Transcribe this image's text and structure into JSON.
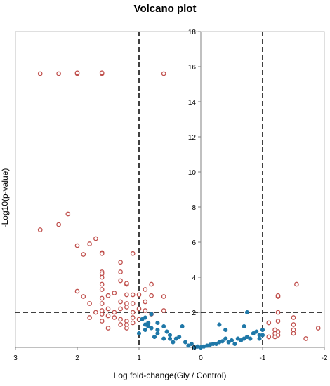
{
  "chart_data": {
    "type": "scatter",
    "title": "Volcano plot",
    "xlabel": "Log fold-change(Gly / Control)",
    "ylabel": "-Log10(p-value)",
    "x_reversed": true,
    "xlim": [
      3,
      -2
    ],
    "ylim": [
      0,
      18
    ],
    "x_ticks": [
      3,
      2,
      1,
      0,
      -1,
      -2
    ],
    "x_tick_labels": [
      "3",
      "2",
      "1",
      "0",
      "-1",
      "-2"
    ],
    "y_ticks": [
      0,
      2,
      4,
      6,
      8,
      10,
      12,
      14,
      16,
      18
    ],
    "y_tick_labels": [
      "0",
      "2",
      "4",
      "6",
      "8",
      "10",
      "12",
      "14",
      "16",
      "18"
    ],
    "threshold_lines": {
      "x": [
        1,
        -1
      ],
      "y": 2
    },
    "grid": false,
    "colors": {
      "significant": "#c0504d",
      "not_significant": "#1f78a8",
      "threshold": "#000000"
    },
    "series": [
      {
        "marker": "open-circle",
        "color": "#c0504d",
        "points": [
          [
            2.6,
            15.6
          ],
          [
            2.3,
            15.6
          ],
          [
            2.0,
            15.6
          ],
          [
            2.0,
            15.65
          ],
          [
            1.6,
            15.6
          ],
          [
            1.6,
            15.65
          ],
          [
            0.6,
            15.6
          ],
          [
            2.15,
            7.6
          ],
          [
            2.3,
            7.0
          ],
          [
            2.6,
            6.7
          ],
          [
            1.7,
            6.2
          ],
          [
            1.8,
            5.9
          ],
          [
            2.0,
            5.8
          ],
          [
            1.9,
            5.3
          ],
          [
            1.6,
            5.4
          ],
          [
            1.6,
            5.35
          ],
          [
            1.1,
            5.35
          ],
          [
            1.3,
            4.85
          ],
          [
            1.3,
            4.3
          ],
          [
            1.6,
            4.3
          ],
          [
            1.6,
            4.2
          ],
          [
            1.6,
            4.0
          ],
          [
            1.3,
            3.8
          ],
          [
            1.6,
            3.6
          ],
          [
            1.2,
            3.6
          ],
          [
            1.2,
            3.65
          ],
          [
            0.8,
            3.6
          ],
          [
            0.9,
            3.3
          ],
          [
            2.0,
            3.2
          ],
          [
            1.6,
            3.3
          ],
          [
            1.4,
            3.1
          ],
          [
            1.2,
            3.0
          ],
          [
            1.1,
            3.0
          ],
          [
            1.0,
            3.0
          ],
          [
            0.8,
            2.95
          ],
          [
            1.9,
            2.9
          ],
          [
            1.6,
            2.8
          ],
          [
            1.5,
            2.95
          ],
          [
            1.3,
            2.6
          ],
          [
            1.2,
            2.5
          ],
          [
            1.1,
            2.5
          ],
          [
            0.9,
            2.6
          ],
          [
            0.6,
            2.9
          ],
          [
            1.8,
            2.5
          ],
          [
            1.6,
            2.5
          ],
          [
            1.7,
            2.0
          ],
          [
            1.6,
            1.9
          ],
          [
            1.6,
            2.1
          ],
          [
            1.5,
            2.2
          ],
          [
            1.4,
            2.0
          ],
          [
            1.3,
            2.2
          ],
          [
            1.2,
            2.3
          ],
          [
            1.1,
            2.0
          ],
          [
            1.0,
            2.2
          ],
          [
            0.9,
            2.1
          ],
          [
            0.8,
            1.9
          ],
          [
            0.6,
            2.1
          ],
          [
            1.8,
            1.7
          ],
          [
            1.6,
            1.5
          ],
          [
            1.5,
            1.8
          ],
          [
            1.4,
            1.7
          ],
          [
            1.3,
            1.6
          ],
          [
            1.2,
            1.5
          ],
          [
            1.2,
            1.3
          ],
          [
            1.1,
            1.4
          ],
          [
            1.1,
            1.7
          ],
          [
            1.0,
            1.6
          ],
          [
            1.2,
            1.1
          ],
          [
            1.5,
            1.1
          ],
          [
            1.3,
            1.3
          ],
          [
            -1.25,
            2.9
          ],
          [
            -1.25,
            2.95
          ],
          [
            -1.25,
            2.0
          ],
          [
            -1.25,
            1.5
          ],
          [
            -1.2,
            1.0
          ],
          [
            -1.25,
            0.9
          ],
          [
            -1.25,
            0.7
          ],
          [
            -1.2,
            0.6
          ],
          [
            -1.1,
            0.6
          ],
          [
            -1.1,
            1.4
          ],
          [
            -1.5,
            1.7
          ],
          [
            -1.5,
            1.3
          ],
          [
            -1.5,
            1.0
          ],
          [
            -1.5,
            0.8
          ],
          [
            -1.55,
            3.6
          ],
          [
            -1.7,
            0.5
          ],
          [
            -1.9,
            1.1
          ],
          [
            -1.2,
            0.8
          ]
        ]
      },
      {
        "marker": "filled-circle",
        "color": "#1f78a8",
        "points": [
          [
            0.9,
            1.0
          ],
          [
            0.85,
            1.4
          ],
          [
            0.9,
            1.3
          ],
          [
            0.85,
            1.2
          ],
          [
            0.9,
            1.7
          ],
          [
            0.8,
            1.9
          ],
          [
            0.8,
            1.1
          ],
          [
            0.7,
            1.0
          ],
          [
            0.7,
            0.8
          ],
          [
            0.75,
            0.6
          ],
          [
            0.6,
            1.2
          ],
          [
            0.55,
            0.9
          ],
          [
            0.6,
            0.5
          ],
          [
            0.5,
            0.7
          ],
          [
            0.45,
            0.3
          ],
          [
            0.4,
            0.5
          ],
          [
            0.35,
            0.6
          ],
          [
            0.3,
            1.2
          ],
          [
            0.25,
            0.3
          ],
          [
            0.2,
            0.1
          ],
          [
            0.15,
            0.2
          ],
          [
            0.1,
            0.0
          ],
          [
            0.05,
            0.05
          ],
          [
            0.0,
            0.0
          ],
          [
            -0.05,
            0.05
          ],
          [
            -0.1,
            0.1
          ],
          [
            -0.15,
            0.15
          ],
          [
            -0.2,
            0.2
          ],
          [
            -0.25,
            0.2
          ],
          [
            -0.3,
            0.3
          ],
          [
            -0.35,
            0.35
          ],
          [
            -0.4,
            0.5
          ],
          [
            -0.45,
            0.3
          ],
          [
            -0.5,
            0.4
          ],
          [
            -0.55,
            0.2
          ],
          [
            -0.6,
            0.5
          ],
          [
            -0.65,
            0.4
          ],
          [
            -0.7,
            0.5
          ],
          [
            -0.75,
            0.6
          ],
          [
            -0.8,
            0.5
          ],
          [
            -0.85,
            0.8
          ],
          [
            -0.9,
            0.9
          ],
          [
            -0.95,
            0.7
          ],
          [
            -0.75,
            2.0
          ],
          [
            -0.7,
            1.2
          ],
          [
            -0.3,
            1.3
          ],
          [
            -1.0,
            1.0
          ],
          [
            -1.0,
            0.7
          ],
          [
            -0.95,
            0.5
          ],
          [
            -0.4,
            1.0
          ],
          [
            1.0,
            0.8
          ],
          [
            0.95,
            1.6
          ],
          [
            0.7,
            1.4
          ],
          [
            0.5,
            0.5
          ]
        ]
      }
    ]
  }
}
